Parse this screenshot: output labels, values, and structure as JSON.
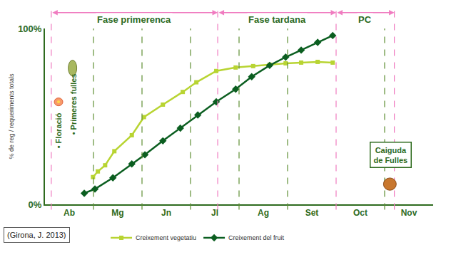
{
  "chart_data": {
    "type": "line",
    "y_label": "% de reg / requeriments totals",
    "xlim": [
      0,
      8
    ],
    "xticks": [
      {
        "value": 0.5,
        "label": "Ab"
      },
      {
        "value": 1.5,
        "label": "Mg"
      },
      {
        "value": 2.5,
        "label": "Jn"
      },
      {
        "value": 3.5,
        "label": "Jl"
      },
      {
        "value": 4.5,
        "label": "Ag"
      },
      {
        "value": 5.5,
        "label": "Set"
      },
      {
        "value": 6.5,
        "label": "Oct"
      },
      {
        "value": 7.5,
        "label": "Nov"
      }
    ],
    "ylim": [
      0,
      100
    ],
    "yticks": [
      {
        "value": 0,
        "label": "0%"
      },
      {
        "value": 100,
        "label": "100%"
      }
    ],
    "grid": false,
    "legend": "bottom",
    "series": [
      {
        "name": "Creixement vegetatiu",
        "color": "#b8d432",
        "marker": "square",
        "x": [
          0.99,
          1.09,
          1.24,
          1.43,
          1.79,
          2.04,
          2.43,
          2.84,
          3.12,
          3.53,
          3.93,
          4.29,
          4.63,
          4.96,
          5.28,
          5.62,
          5.93
        ],
        "values": [
          15.5,
          18.7,
          22.2,
          30.2,
          39.3,
          49.6,
          56.7,
          63.9,
          69.4,
          75.8,
          77.8,
          78.6,
          79.4,
          80.2,
          80.6,
          81.0,
          80.6
        ]
      },
      {
        "name": "Creixement del fruit",
        "color": "#0b5e20",
        "marker": "diamond",
        "x": [
          0.81,
          1.03,
          1.4,
          1.79,
          2.06,
          2.43,
          2.79,
          3.15,
          3.53,
          3.93,
          4.26,
          4.63,
          4.96,
          5.28,
          5.62,
          5.93
        ],
        "values": [
          6.3,
          8.7,
          15.1,
          23.0,
          28.2,
          36.1,
          43.3,
          50.8,
          58.3,
          65.5,
          72.6,
          79.0,
          83.7,
          87.7,
          92.1,
          96.0
        ]
      }
    ],
    "phases": [
      {
        "name": "Fase primerenca",
        "start": 0.13,
        "end": 3.56
      },
      {
        "name": "Fase tardana",
        "start": 3.56,
        "end": 6.0
      },
      {
        "name": "PC",
        "start": 6.0,
        "end": 7.2
      }
    ],
    "month_lines": [
      1,
      2,
      3,
      4,
      5,
      7
    ],
    "annotations": [
      {
        "text": "• Floració"
      },
      {
        "text": "• Primeres fulles"
      }
    ],
    "note_box": {
      "lines": [
        "Caiguda",
        "de Fulles"
      ]
    },
    "source": "(Girona, J. 2013)"
  }
}
